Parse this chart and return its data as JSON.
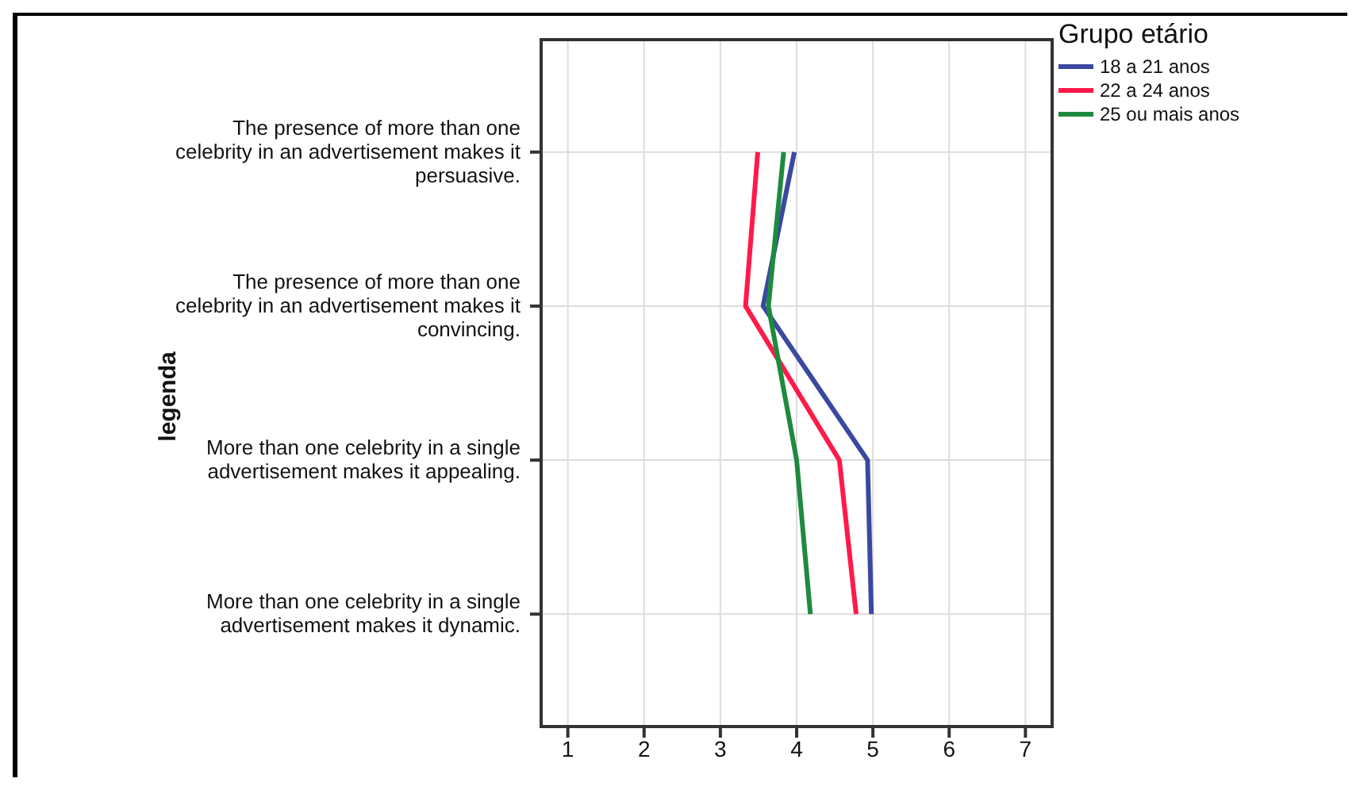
{
  "chart_data": {
    "type": "line",
    "orientation": "horizontal",
    "ylabel": "legenda",
    "legend_title": "Grupo etário",
    "legend": "top right",
    "grid": true,
    "marker": "none",
    "categories": [
      "The presence of more than one celebrity in an advertisement makes it persuasive.",
      "The presence of more than one celebrity in an advertisement makes it convincing.",
      "More than one celebrity in a single advertisement makes it appealing.",
      "More than one celebrity in a single advertisement makes it dynamic."
    ],
    "xlim": [
      0.65,
      7.35
    ],
    "xticks": [
      1,
      2,
      3,
      4,
      5,
      6,
      7
    ],
    "series": [
      {
        "name": "18 a 21 anos",
        "color": "#3a48a0",
        "values": [
          3.97,
          3.56,
          4.93,
          4.98
        ]
      },
      {
        "name": "22 a 24 anos",
        "color": "#ff1a4a",
        "values": [
          3.49,
          3.33,
          4.56,
          4.78
        ]
      },
      {
        "name": "25 ou mais anos",
        "color": "#1f8a3e",
        "values": [
          3.83,
          3.63,
          4.0,
          4.18
        ]
      }
    ]
  }
}
